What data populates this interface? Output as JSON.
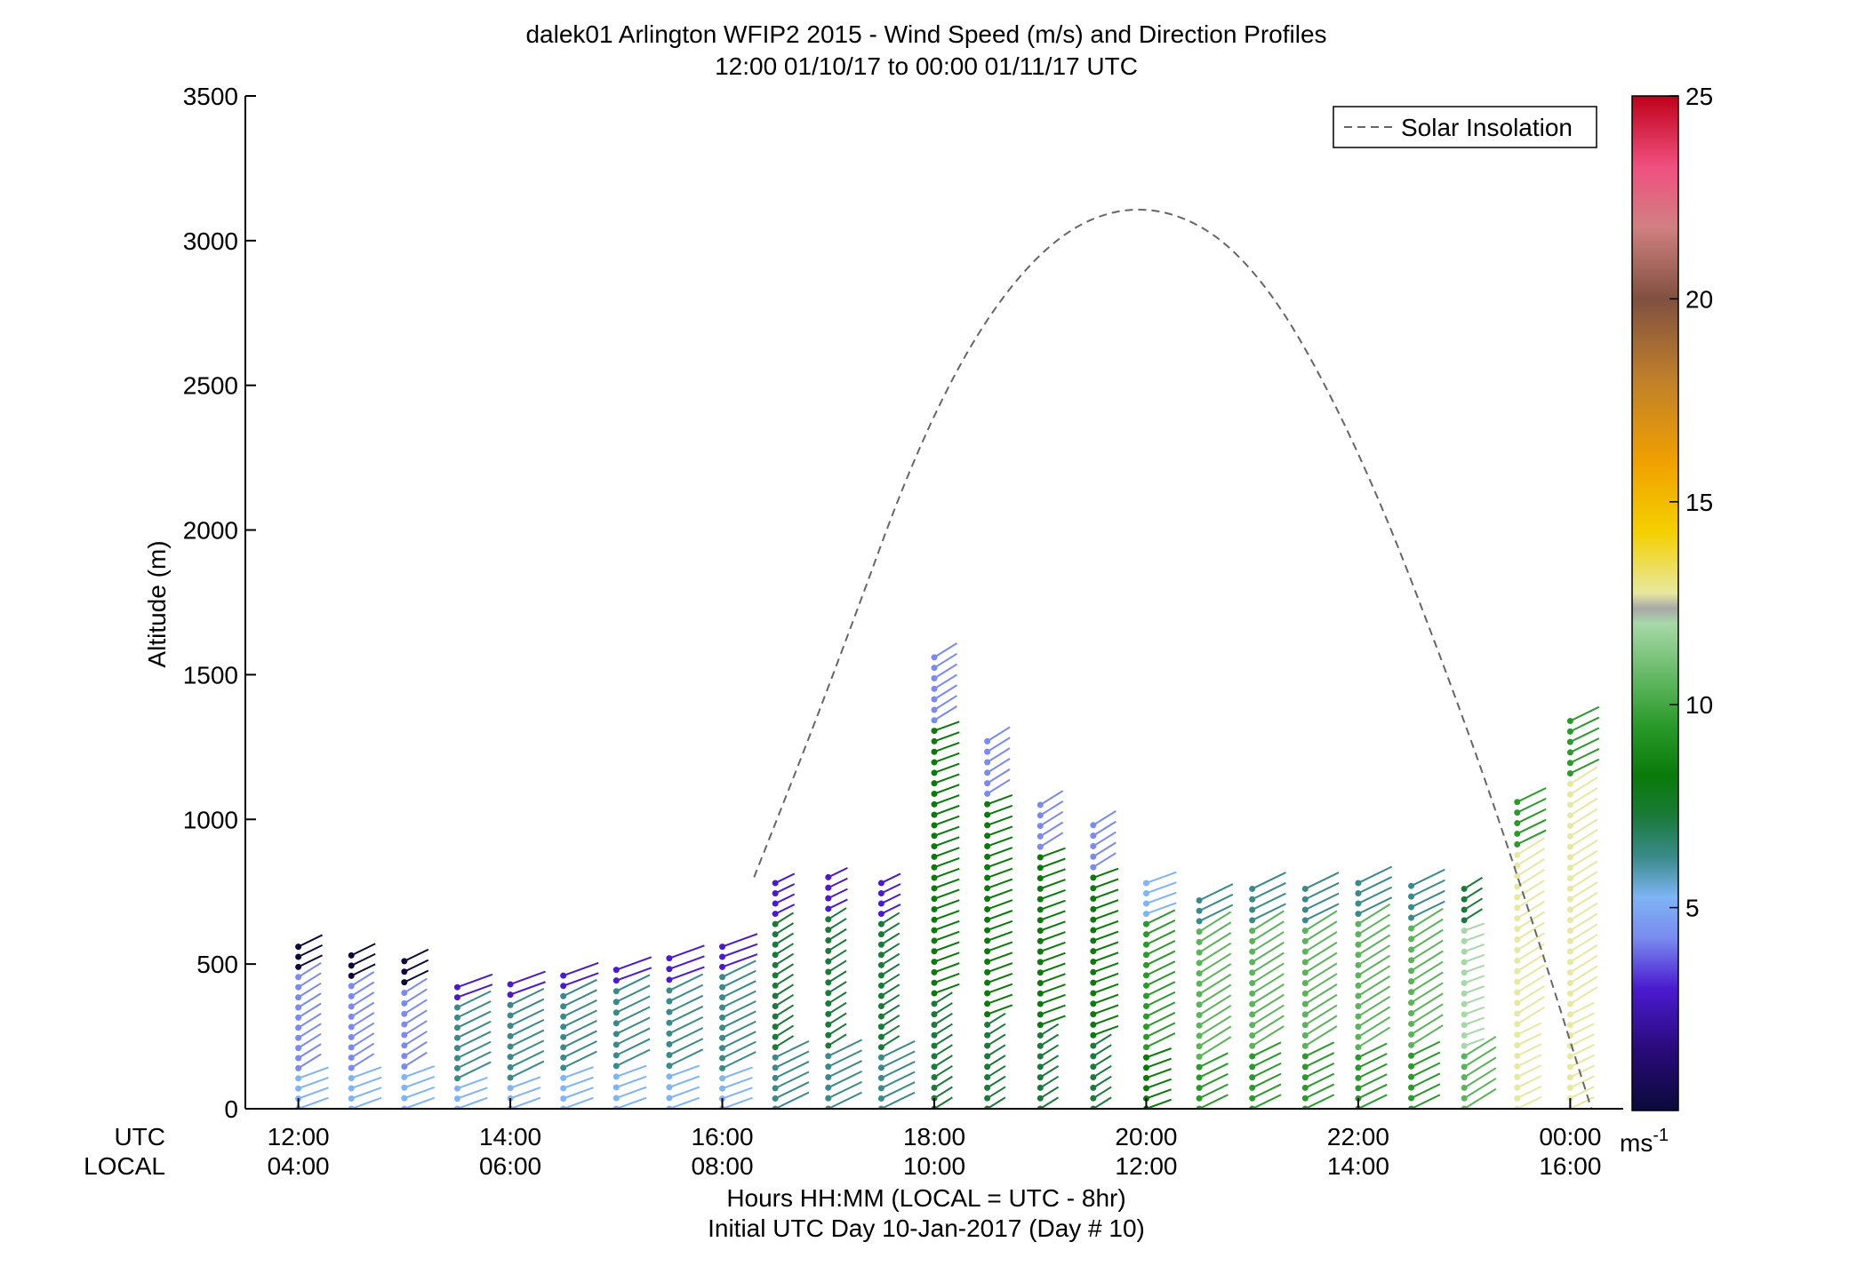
{
  "chart_data": {
    "type": "barb-profile",
    "title_line1": "dalek01 Arlington WFIP2 2015 - Wind Speed (m/s) and Direction Profiles",
    "title_line2": "12:00 01/10/17 to 00:00 01/11/17  UTC",
    "ylabel": "Altitude (m)",
    "ylim": [
      0,
      3500
    ],
    "yticks": [
      "0",
      "500",
      "1000",
      "1500",
      "2000",
      "2500",
      "3000",
      "3500"
    ],
    "xlim_hours_utc": [
      11.5,
      24.5
    ],
    "row_label_utc": "UTC",
    "row_label_local": "LOCAL",
    "xticks_utc": [
      "12:00",
      "14:00",
      "16:00",
      "18:00",
      "20:00",
      "22:00",
      "00:00"
    ],
    "xticks_local": [
      "04:00",
      "06:00",
      "08:00",
      "10:00",
      "12:00",
      "14:00",
      "16:00"
    ],
    "xlabel_line1": "Hours HH:MM  (LOCAL = UTC - 8hr)",
    "xlabel_line2": "Initial UTC Day 10-Jan-2017 (Day # 10)",
    "legend_label": "Solar Insolation",
    "legend_position": "top-right",
    "colorbar_ticks": [
      "5",
      "10",
      "15",
      "20",
      "25"
    ],
    "colorbar_unit": "ms",
    "colorbar_unit_sup": "-1",
    "colorbar_range": [
      0,
      25
    ],
    "solar_insolation_curve": {
      "x_hours_utc": [
        16.3,
        17.0,
        18.0,
        19.0,
        20.0,
        21.0,
        22.0,
        23.0,
        23.6,
        24.2
      ],
      "altitude_m": [
        800,
        1450,
        2450,
        3000,
        3150,
        2950,
        2300,
        1350,
        700,
        0
      ]
    },
    "wind_profiles": [
      {
        "hour": 12.0,
        "top_m": 560,
        "speed_ms": 5
      },
      {
        "hour": 12.5,
        "top_m": 530,
        "speed_ms": 5
      },
      {
        "hour": 13.0,
        "top_m": 510,
        "speed_ms": 5
      },
      {
        "hour": 13.5,
        "top_m": 420,
        "speed_ms": 7
      },
      {
        "hour": 14.0,
        "top_m": 430,
        "speed_ms": 7
      },
      {
        "hour": 14.5,
        "top_m": 460,
        "speed_ms": 7
      },
      {
        "hour": 15.0,
        "top_m": 480,
        "speed_ms": 7
      },
      {
        "hour": 15.5,
        "top_m": 520,
        "speed_ms": 7
      },
      {
        "hour": 16.0,
        "top_m": 560,
        "speed_ms": 7
      },
      {
        "hour": 16.5,
        "top_m": 780,
        "speed_ms": 8
      },
      {
        "hour": 17.0,
        "top_m": 800,
        "speed_ms": 8
      },
      {
        "hour": 17.5,
        "top_m": 780,
        "speed_ms": 8
      },
      {
        "hour": 18.0,
        "top_m": 1560,
        "speed_ms": 9
      },
      {
        "hour": 18.5,
        "top_m": 1270,
        "speed_ms": 9
      },
      {
        "hour": 19.0,
        "top_m": 1050,
        "speed_ms": 9
      },
      {
        "hour": 19.5,
        "top_m": 980,
        "speed_ms": 9
      },
      {
        "hour": 20.0,
        "top_m": 780,
        "speed_ms": 10
      },
      {
        "hour": 20.5,
        "top_m": 720,
        "speed_ms": 11
      },
      {
        "hour": 21.0,
        "top_m": 760,
        "speed_ms": 11
      },
      {
        "hour": 21.5,
        "top_m": 760,
        "speed_ms": 11
      },
      {
        "hour": 22.0,
        "top_m": 780,
        "speed_ms": 11
      },
      {
        "hour": 22.5,
        "top_m": 770,
        "speed_ms": 11
      },
      {
        "hour": 23.0,
        "top_m": 760,
        "speed_ms": 12
      },
      {
        "hour": 23.5,
        "top_m": 1060,
        "speed_ms": 14
      },
      {
        "hour": 24.0,
        "top_m": 1340,
        "speed_ms": 14
      }
    ]
  },
  "colors": {
    "axis": "#000000",
    "solar_curve": "#666666",
    "low_level_barbs": "#1a8a1a"
  }
}
